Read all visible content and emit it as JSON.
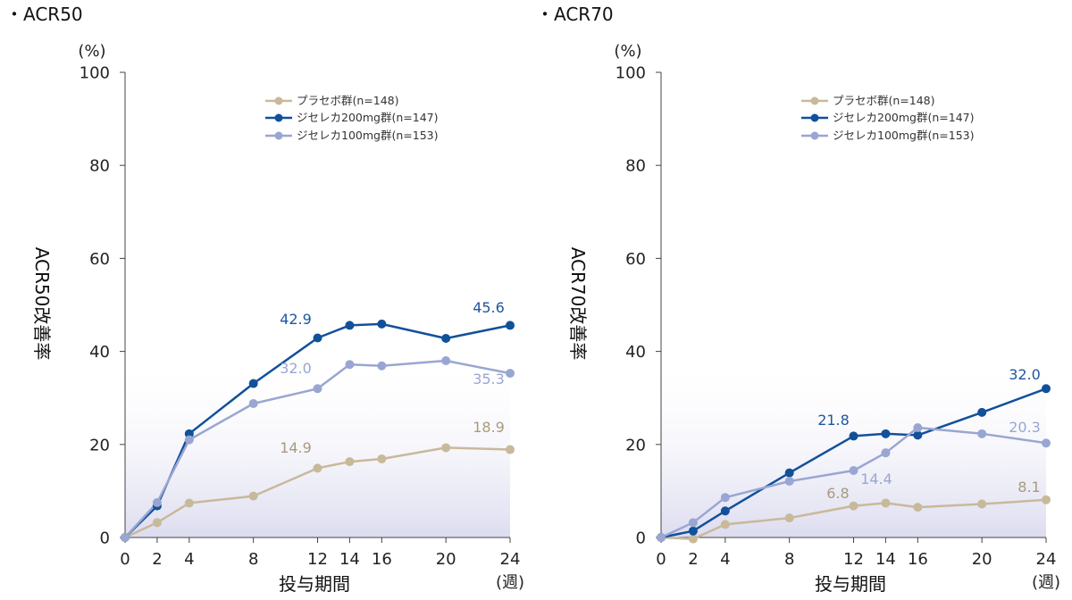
{
  "y_unit": "(%)",
  "x_unit": "(週)",
  "charts": [
    {
      "title": "・ACR50",
      "ylabel": "ACR50改善率",
      "xlabel": "投与期間",
      "legend": [
        {
          "label": "プラセボ群(n=148)",
          "color": "#c8b99a"
        },
        {
          "label": "ジセレカ200mg群(n=147)",
          "color": "#12509a"
        },
        {
          "label": "ジセレカ100mg群(n=153)",
          "color": "#9aa6d2"
        }
      ],
      "data_labels": [
        {
          "text": "42.9",
          "color": "#1f56a0"
        },
        {
          "text": "45.6",
          "color": "#1f56a0"
        },
        {
          "text": "32.0",
          "color": "#9aa6d2"
        },
        {
          "text": "35.3",
          "color": "#9aa6d2"
        },
        {
          "text": "14.9",
          "color": "#a89a7c"
        },
        {
          "text": "18.9",
          "color": "#a89a7c"
        }
      ]
    },
    {
      "title": "・ACR70",
      "ylabel": "ACR70改善率",
      "xlabel": "投与期間",
      "legend": [
        {
          "label": "プラセボ群(n=148)",
          "color": "#c8b99a"
        },
        {
          "label": "ジセレカ200mg群(n=147)",
          "color": "#12509a"
        },
        {
          "label": "ジセレカ100mg群(n=153)",
          "color": "#9aa6d2"
        }
      ],
      "data_labels": [
        {
          "text": "21.8",
          "color": "#1f56a0"
        },
        {
          "text": "32.0",
          "color": "#1f56a0"
        },
        {
          "text": "14.4",
          "color": "#9aa6d2"
        },
        {
          "text": "20.3",
          "color": "#9aa6d2"
        },
        {
          "text": "6.8",
          "color": "#a89a7c"
        },
        {
          "text": "8.1",
          "color": "#a89a7c"
        }
      ]
    }
  ],
  "chart_data": [
    {
      "type": "line",
      "title": "・ACR50",
      "xlabel": "投与期間",
      "ylabel": "ACR50改善率",
      "ylim": [
        0,
        100
      ],
      "yticks": [
        0,
        20,
        40,
        60,
        80,
        100
      ],
      "xticks": [
        0,
        2,
        4,
        8,
        12,
        14,
        16,
        20,
        24
      ],
      "x": [
        0,
        2,
        4,
        8,
        12,
        14,
        16,
        20,
        24
      ],
      "grid": false,
      "legend_position": "top-right",
      "series": [
        {
          "name": "プラセボ群(n=148)",
          "color": "#c8b99a",
          "values": [
            0,
            3.2,
            7.4,
            8.9,
            14.9,
            16.3,
            16.9,
            19.3,
            18.9
          ]
        },
        {
          "name": "ジセレカ200mg群(n=147)",
          "color": "#12509a",
          "values": [
            0,
            6.8,
            22.3,
            33.1,
            42.9,
            45.6,
            45.9,
            42.8,
            45.6
          ]
        },
        {
          "name": "ジセレカ100mg群(n=153)",
          "color": "#9aa6d2",
          "values": [
            0,
            7.5,
            21.0,
            28.8,
            32.0,
            37.2,
            36.9,
            38.0,
            35.3
          ]
        }
      ]
    },
    {
      "type": "line",
      "title": "・ACR70",
      "xlabel": "投与期間",
      "ylabel": "ACR70改善率",
      "ylim": [
        0,
        100
      ],
      "yticks": [
        0,
        20,
        40,
        60,
        80,
        100
      ],
      "xticks": [
        0,
        2,
        4,
        8,
        12,
        14,
        16,
        20,
        24
      ],
      "x": [
        0,
        2,
        4,
        8,
        12,
        14,
        16,
        20,
        24
      ],
      "grid": false,
      "legend_position": "top-right",
      "series": [
        {
          "name": "プラセボ群(n=148)",
          "color": "#c8b99a",
          "values": [
            0,
            -0.3,
            2.8,
            4.2,
            6.8,
            7.4,
            6.5,
            7.2,
            8.1
          ]
        },
        {
          "name": "ジセレカ200mg群(n=147)",
          "color": "#12509a",
          "values": [
            0,
            1.4,
            5.7,
            13.9,
            21.8,
            22.3,
            22.0,
            26.9,
            32.0
          ]
        },
        {
          "name": "ジセレカ100mg群(n=153)",
          "color": "#9aa6d2",
          "values": [
            0,
            3.2,
            8.6,
            12.1,
            14.4,
            18.2,
            23.6,
            22.3,
            20.3
          ]
        }
      ]
    }
  ]
}
